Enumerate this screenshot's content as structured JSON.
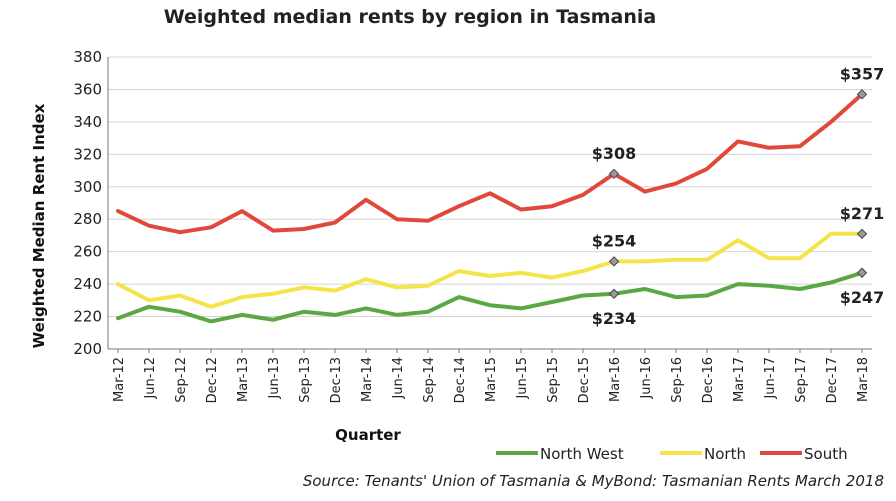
{
  "chart_data": {
    "type": "line",
    "title": "Weighted median rents by region in Tasmania",
    "xlabel": "Quarter",
    "ylabel": "Weighted Median Rent Index",
    "ylim": [
      200,
      380
    ],
    "yticks": [
      200,
      220,
      240,
      260,
      280,
      300,
      320,
      340,
      360,
      380
    ],
    "grid": true,
    "legend_position": "bottom-right",
    "categories": [
      "Mar-12",
      "Jun-12",
      "Sep-12",
      "Dec-12",
      "Mar-13",
      "Jun-13",
      "Sep-13",
      "Dec-13",
      "Mar-14",
      "Jun-14",
      "Sep-14",
      "Dec-14",
      "Mar-15",
      "Jun-15",
      "Sep-15",
      "Dec-15",
      "Mar-16",
      "Jun-16",
      "Sep-16",
      "Dec-16",
      "Mar-17",
      "Jun-17",
      "Sep-17",
      "Dec-17",
      "Mar-18"
    ],
    "series": [
      {
        "name": "North West",
        "color": "#5aa843",
        "values": [
          219,
          226,
          223,
          217,
          221,
          218,
          223,
          221,
          225,
          221,
          223,
          232,
          227,
          225,
          229,
          233,
          234,
          237,
          232,
          233,
          240,
          239,
          237,
          241,
          247
        ]
      },
      {
        "name": "North",
        "color": "#f5e34a",
        "values": [
          240,
          230,
          233,
          226,
          232,
          234,
          238,
          236,
          243,
          238,
          239,
          248,
          245,
          247,
          244,
          248,
          254,
          254,
          255,
          255,
          267,
          256,
          256,
          271,
          271
        ]
      },
      {
        "name": "South",
        "color": "#e0483c",
        "values": [
          285,
          276,
          272,
          275,
          285,
          273,
          274,
          278,
          292,
          280,
          279,
          288,
          296,
          286,
          288,
          295,
          308,
          297,
          302,
          311,
          328,
          324,
          325,
          340,
          357
        ]
      }
    ],
    "annotations": [
      {
        "text": "$357",
        "series": 2,
        "index": 24,
        "place": "above"
      },
      {
        "text": "$308",
        "series": 2,
        "index": 16,
        "place": "above"
      },
      {
        "text": "$271",
        "series": 1,
        "index": 24,
        "place": "above"
      },
      {
        "text": "$254",
        "series": 1,
        "index": 16,
        "place": "above"
      },
      {
        "text": "$234",
        "series": 0,
        "index": 16,
        "place": "below"
      },
      {
        "text": "$247",
        "series": 0,
        "index": 24,
        "place": "below"
      }
    ],
    "source": "Source: Tenants' Union of Tasmania & MyBond: Tasmanian Rents March 2018"
  }
}
